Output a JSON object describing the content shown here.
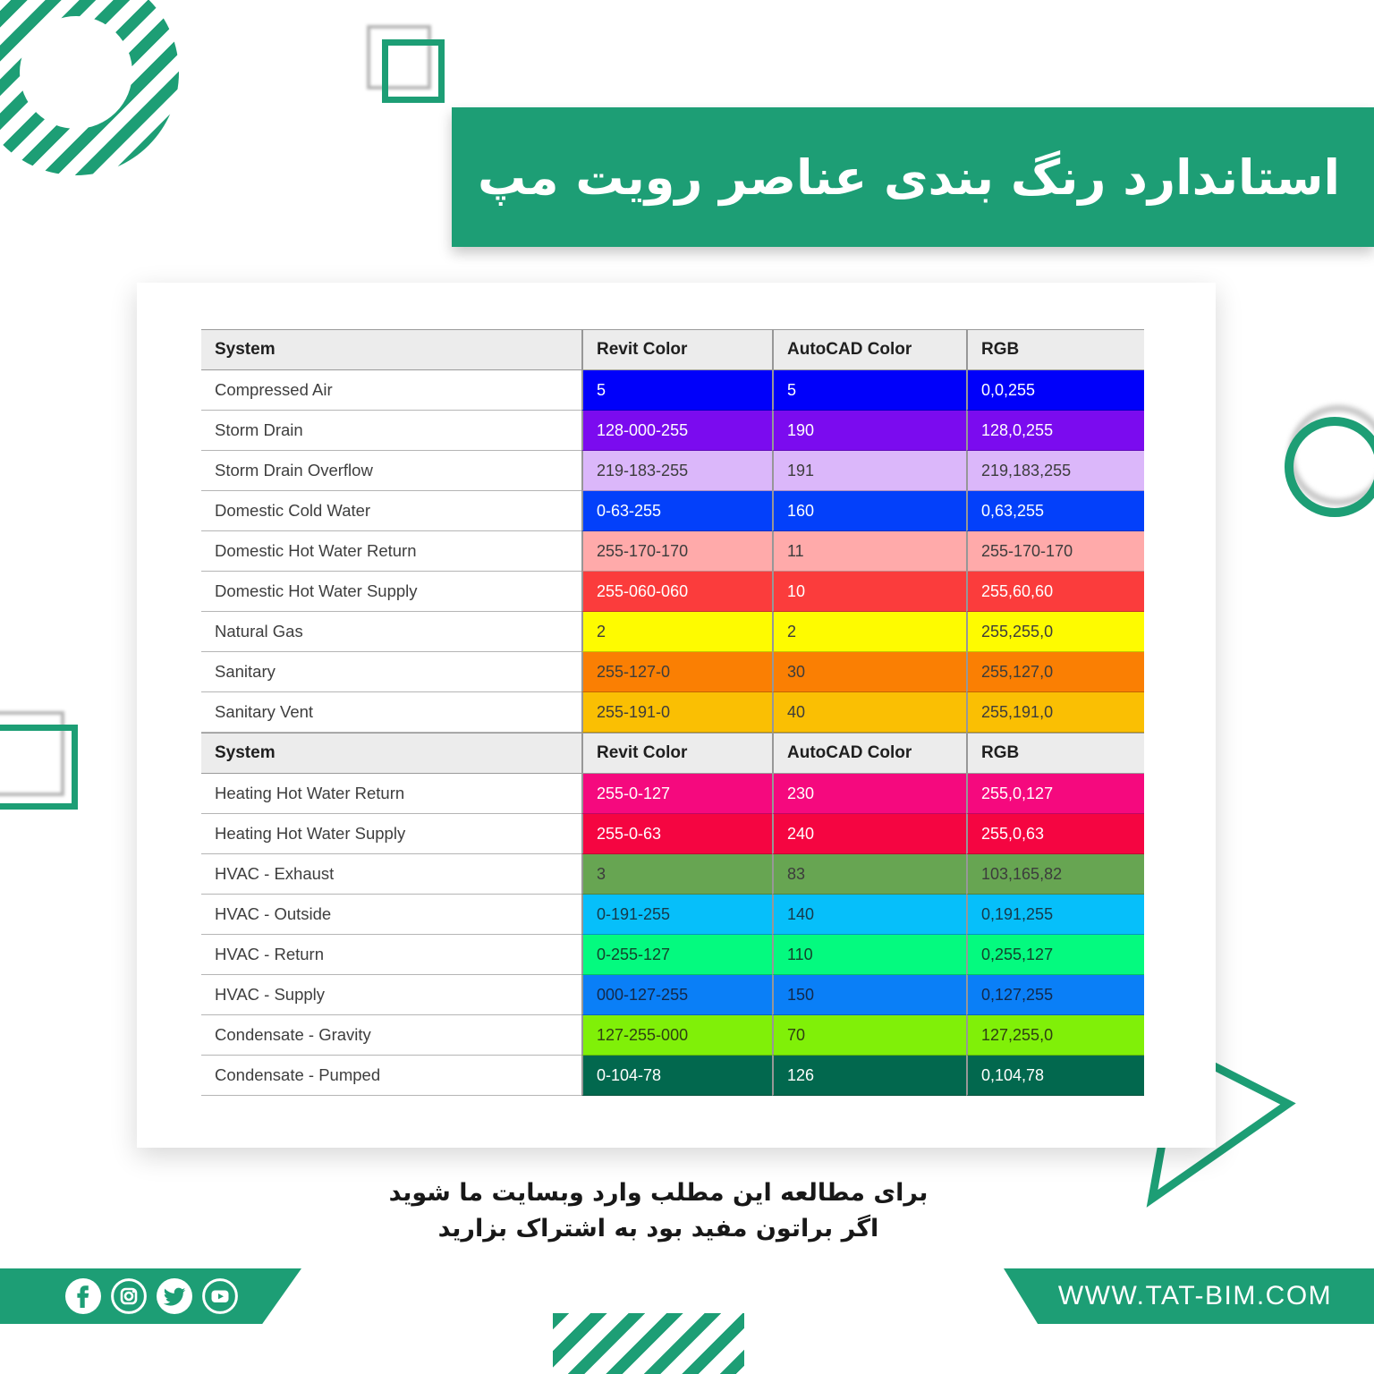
{
  "title": "استاندارد رنگ بندی عناصر رویت مپ",
  "brand": {
    "green": "#1d9e75"
  },
  "table": {
    "headers": [
      "System",
      "Revit Color",
      "AutoCAD Color",
      "RGB"
    ],
    "sections": [
      {
        "rows": [
          {
            "system": "Compressed Air",
            "revit": "5",
            "autocad": "5",
            "rgb": "0,0,255",
            "bg": "#0000FA",
            "fg": "#FFFFFF"
          },
          {
            "system": "Storm Drain",
            "revit": "128-000-255",
            "autocad": "190",
            "rgb": "128,0,255",
            "bg": "#7B0BEF",
            "fg": "#FFFFFF"
          },
          {
            "system": "Storm Drain Overflow",
            "revit": "219-183-255",
            "autocad": "191",
            "rgb": "219,183,255",
            "bg": "#DBB7FA",
            "fg": "#3C3C3C"
          },
          {
            "system": "Domestic Cold Water",
            "revit": "0-63-255",
            "autocad": "160",
            "rgb": "0,63,255",
            "bg": "#0340FA",
            "fg": "#FFFFFF"
          },
          {
            "system": "Domestic Hot Water Return",
            "revit": "255-170-170",
            "autocad": "11",
            "rgb": "255-170-170",
            "bg": "#FFAAAA",
            "fg": "#3C3C3C"
          },
          {
            "system": "Domestic Hot Water Supply",
            "revit": "255-060-060",
            "autocad": "10",
            "rgb": "255,60,60",
            "bg": "#FB3C3C",
            "fg": "#FFFFFF"
          },
          {
            "system": "Natural Gas",
            "revit": "2",
            "autocad": "2",
            "rgb": "255,255,0",
            "bg": "#FEFB00",
            "fg": "#3C3C3C"
          },
          {
            "system": "Sanitary",
            "revit": "255-127-0",
            "autocad": "30",
            "rgb": "255,127,0",
            "bg": "#FA7F03",
            "fg": "#3C3C3C"
          },
          {
            "system": "Sanitary Vent",
            "revit": "255-191-0",
            "autocad": "40",
            "rgb": "255,191,0",
            "bg": "#FABF03",
            "fg": "#3C3C3C"
          }
        ]
      },
      {
        "rows": [
          {
            "system": "Heating Hot Water Return",
            "revit": "255-0-127",
            "autocad": "230",
            "rgb": "255,0,127",
            "bg": "#F5097E",
            "fg": "#FFFFFF"
          },
          {
            "system": "Heating Hot Water Supply",
            "revit": "255-0-63",
            "autocad": "240",
            "rgb": "255,0,63",
            "bg": "#F50541",
            "fg": "#FFFFFF"
          },
          {
            "system": "HVAC - Exhaust",
            "revit": "3",
            "autocad": "83",
            "rgb": "103,165,82",
            "bg": "#67A552",
            "fg": "#3C3C3C"
          },
          {
            "system": "HVAC - Outside",
            "revit": "0-191-255",
            "autocad": "140",
            "rgb": "0,191,255",
            "bg": "#06BFFA",
            "fg": "#17394A"
          },
          {
            "system": "HVAC - Return",
            "revit": "0-255-127",
            "autocad": "110",
            "rgb": "0,255,127",
            "bg": "#04FA7F",
            "fg": "#14432B"
          },
          {
            "system": "HVAC - Supply",
            "revit": "000-127-255",
            "autocad": "150",
            "rgb": "0,127,255",
            "bg": "#0A7FF7",
            "fg": "#13294A"
          },
          {
            "system": "Condensate - Gravity",
            "revit": "127-255-000",
            "autocad": "70",
            "rgb": "127,255,0",
            "bg": "#80F008",
            "fg": "#2E3F12"
          },
          {
            "system": "Condensate - Pumped",
            "revit": "0-104-78",
            "autocad": "126",
            "rgb": "0,104,78",
            "bg": "#02684E",
            "fg": "#FFFFFF"
          }
        ]
      }
    ]
  },
  "footer": {
    "note_line1": "برای مطالعه این مطلب وارد وبسایت ما شوید",
    "note_line2": "اگر براتون مفید بود به اشتراک بزارید",
    "website": "WWW.TAT-BIM.COM"
  },
  "social_icons": [
    "facebook-icon",
    "instagram-icon",
    "twitter-icon",
    "youtube-icon"
  ]
}
